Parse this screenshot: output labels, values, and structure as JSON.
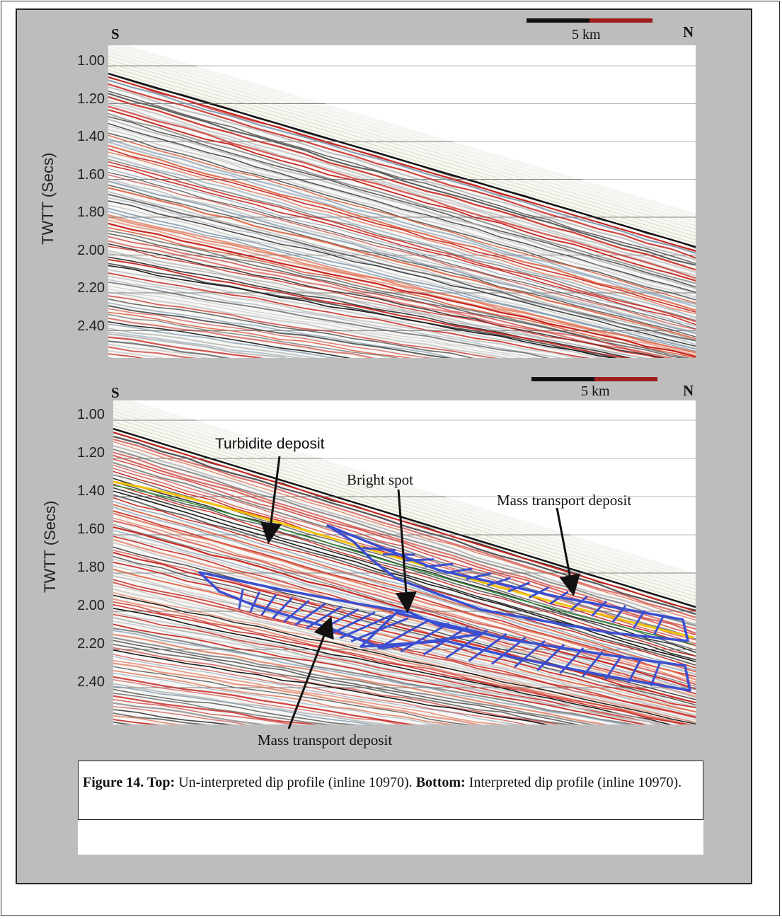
{
  "top_panel": {
    "direction_left": "S",
    "direction_right": "N",
    "scale_label": "5 km",
    "y_axis_label": "TWTT (Secs)",
    "y_ticks": [
      "1.00",
      "1.20",
      "1.40",
      "1.60",
      "1.80",
      "2.00",
      "2.20",
      "2.40"
    ]
  },
  "bottom_panel": {
    "direction_left": "S",
    "direction_right": "N",
    "scale_label": "5 km",
    "y_axis_label": "TWTT (Secs)",
    "y_ticks": [
      "1.00",
      "1.20",
      "1.40",
      "1.60",
      "1.80",
      "2.00",
      "2.20",
      "2.40"
    ],
    "annotations": {
      "turbidite": "Turbidite deposit",
      "bright_spot": "Bright spot",
      "mtd_upper": "Mass transport deposit",
      "mtd_lower": "Mass transport deposit"
    }
  },
  "caption": {
    "fig_label": "Figure 14. Top:",
    "top_text": " Un-interpreted dip profile (inline 10970). ",
    "bottom_label": "Bottom:",
    "bottom_text": " Interpreted dip profile (inline 10970)."
  },
  "colors": {
    "plate": "#bdbdbd",
    "reflector_red": "#c8241e",
    "reflector_black": "#111111",
    "interp_blue": "#3a4fd1",
    "horizon_yellow": "#f2c200",
    "horizon_green": "#2f8f3a"
  }
}
